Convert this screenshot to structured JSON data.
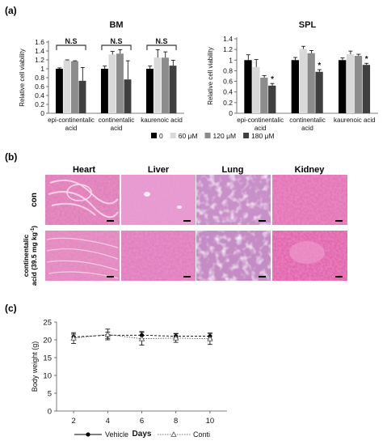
{
  "panel_labels": {
    "a": "(a)",
    "b": "(b)",
    "c": "(c)"
  },
  "legend_a": {
    "entries": [
      {
        "label": "0",
        "color": "#000000"
      },
      {
        "label": "60 μM",
        "color": "#d9d9d9"
      },
      {
        "label": "120 μM",
        "color": "#8c8c8c"
      },
      {
        "label": "180 μM",
        "color": "#3f3f3f"
      }
    ]
  },
  "histology": {
    "columns": [
      "Heart",
      "Liver",
      "Lung",
      "Kidney"
    ],
    "rows": [
      {
        "label": "con"
      },
      {
        "label": "continentalic acid (39.5 mg kg-1)",
        "label_line1": "continentalic",
        "label_line2": "acid (39.5 mg kg",
        "label_sup": "-1",
        "label_close": ")"
      }
    ]
  },
  "chart_data": [
    {
      "type": "bar",
      "title": "BM",
      "ylabel": "Relative cell viability",
      "ylim": [
        0,
        1.6
      ],
      "yticks": [
        "0",
        "0.2",
        "0.4",
        "0.6",
        "0.8",
        "1",
        "1.2",
        "1.4",
        "1.6"
      ],
      "categories": [
        [
          "epi-continentalic",
          "acid"
        ],
        [
          "continentalic",
          "acid"
        ],
        [
          "kaurenoic acid"
        ]
      ],
      "series": [
        {
          "name": "0",
          "values": [
            1.0,
            1.0,
            1.0
          ],
          "errors": [
            0.02,
            0.06,
            0.06
          ]
        },
        {
          "name": "60 μM",
          "values": [
            1.19,
            1.32,
            1.25
          ],
          "errors": [
            0.01,
            0.07,
            0.18
          ]
        },
        {
          "name": "120 μM",
          "values": [
            1.17,
            1.34,
            1.25
          ],
          "errors": [
            0.01,
            0.09,
            0.13
          ]
        },
        {
          "name": "180 μM",
          "values": [
            0.73,
            0.76,
            1.07
          ],
          "errors": [
            0.3,
            0.42,
            0.12
          ]
        }
      ],
      "annotations": [
        {
          "text": "N.S",
          "group": 0
        },
        {
          "text": "N.S",
          "group": 1
        },
        {
          "text": "N.S",
          "group": 2
        }
      ]
    },
    {
      "type": "bar",
      "title": "SPL",
      "ylabel": "Relative cell viability",
      "ylim": [
        0,
        1.4
      ],
      "yticks": [
        "0",
        "0.2",
        "0.4",
        "0.6",
        "0.8",
        "1",
        "1.2",
        "1.4"
      ],
      "categories": [
        [
          "epi-continentalic",
          "acid"
        ],
        [
          "continentalic",
          "acid"
        ],
        [
          "kaurenoic acid"
        ]
      ],
      "series": [
        {
          "name": "0",
          "values": [
            1.0,
            1.0,
            1.0
          ],
          "errors": [
            0.1,
            0.05,
            0.04
          ]
        },
        {
          "name": "60 μM",
          "values": [
            0.87,
            1.21,
            1.11
          ],
          "errors": [
            0.14,
            0.05,
            0.06
          ]
        },
        {
          "name": "120 μM",
          "values": [
            0.67,
            1.13,
            1.08
          ],
          "errors": [
            0.04,
            0.05,
            0.03
          ]
        },
        {
          "name": "180 μM",
          "values": [
            0.52,
            0.78,
            0.91
          ],
          "errors": [
            0.04,
            0.04,
            0.03
          ]
        }
      ],
      "annotations": [
        {
          "text": "*",
          "group": 0,
          "series": 3
        },
        {
          "text": "*",
          "group": 1,
          "series": 3
        },
        {
          "text": "*",
          "group": 2,
          "series": 3
        }
      ]
    },
    {
      "type": "line",
      "xlabel": "Days",
      "ylabel": "Body weight (g)",
      "xlim": [
        1,
        11
      ],
      "ylim": [
        0,
        25
      ],
      "x": [
        2,
        4,
        6,
        8,
        10
      ],
      "yticks": [
        "0",
        "5",
        "10",
        "15",
        "20",
        "25"
      ],
      "series": [
        {
          "name": "Vehicle",
          "values": [
            20.8,
            21.3,
            21.3,
            21.0,
            21.0
          ],
          "errors": [
            0.8,
            0.9,
            1.0,
            0.8,
            0.8
          ],
          "marker": "circle"
        },
        {
          "name": "Conti",
          "values": [
            20.5,
            21.5,
            20.3,
            20.5,
            20.3
          ],
          "errors": [
            1.5,
            1.5,
            1.8,
            1.2,
            1.6
          ],
          "marker": "triangle"
        }
      ]
    }
  ]
}
